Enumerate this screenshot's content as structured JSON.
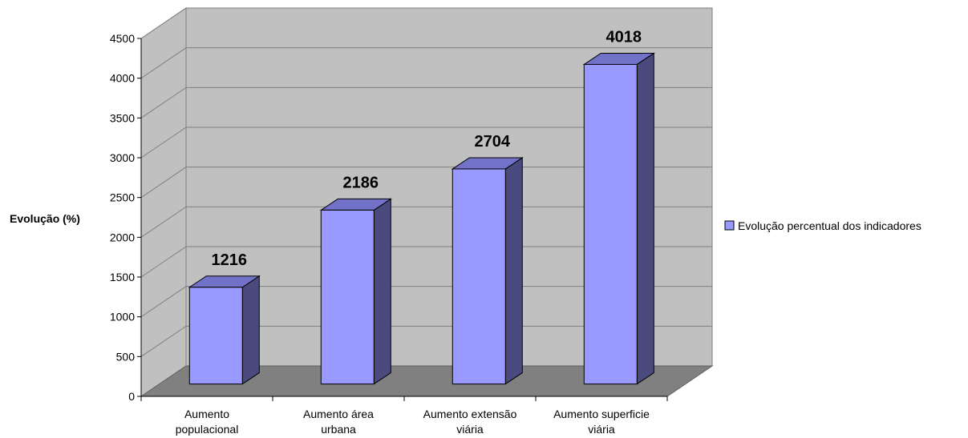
{
  "chart_data": {
    "type": "bar",
    "title": "",
    "xlabel": "",
    "ylabel": "Evolução (%)",
    "ylim": [
      0,
      4500
    ],
    "yticks": [
      0,
      500,
      1000,
      1500,
      2000,
      2500,
      3000,
      3500,
      4000,
      4500
    ],
    "categories": [
      [
        "Aumento",
        "populacional"
      ],
      [
        "Aumento área",
        "urbana"
      ],
      [
        "Aumento extensão",
        "viária"
      ],
      [
        "Aumento superficie",
        "viária"
      ]
    ],
    "series": [
      {
        "name": "Evolução percentual dos indicadores",
        "values": [
          1216,
          2186,
          2704,
          4018
        ]
      }
    ],
    "data_labels": true,
    "grid": true,
    "legend": "right",
    "colors": {
      "bar_front": "#9999ff",
      "bar_side": "#4a4a7e",
      "bar_top": "#7272c8",
      "back_wall": "#c0c0c0",
      "side_wall": "#c0c0c0",
      "floor": "#808080"
    }
  }
}
